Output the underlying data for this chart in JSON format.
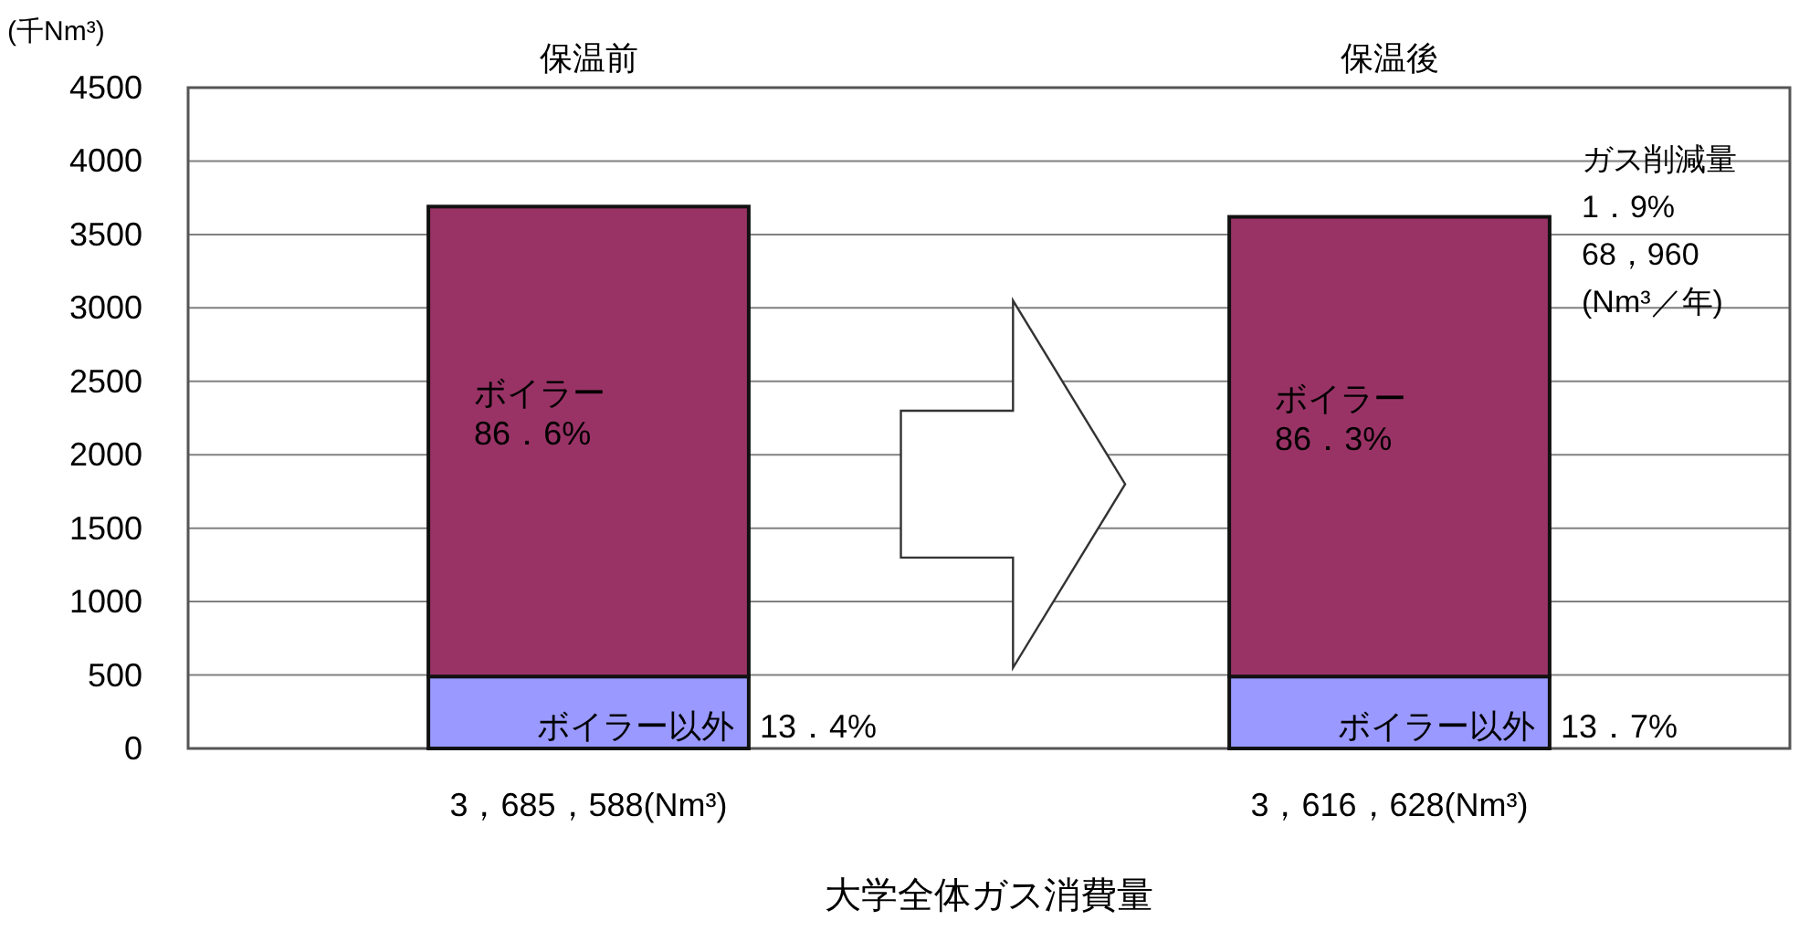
{
  "chart_data": {
    "type": "bar",
    "stacked": true,
    "categories": [
      "保温前",
      "保温後"
    ],
    "series": [
      {
        "name": "ボイラー以外",
        "color": "#9999ff",
        "values": [
          490,
          490
        ]
      },
      {
        "name": "ボイラー",
        "color": "#993366",
        "values": [
          3200,
          3130
        ]
      }
    ],
    "totals": [
      "3，685，588(Nm³)",
      "3，616，628(Nm³)"
    ],
    "xlabel": "大学全体ガス消費量",
    "ylabel": "(千Nm³)",
    "ylim": [
      0,
      4500
    ],
    "yticks": [
      0,
      500,
      1000,
      1500,
      2000,
      2500,
      3000,
      3500,
      4000,
      4500
    ],
    "grid": "y",
    "annotations": [
      "13．4%",
      "13．7%",
      "86．6%",
      "86．3%",
      "ガス削減量\n1．9%\n68，960\n(Nm³／年)"
    ]
  }
}
